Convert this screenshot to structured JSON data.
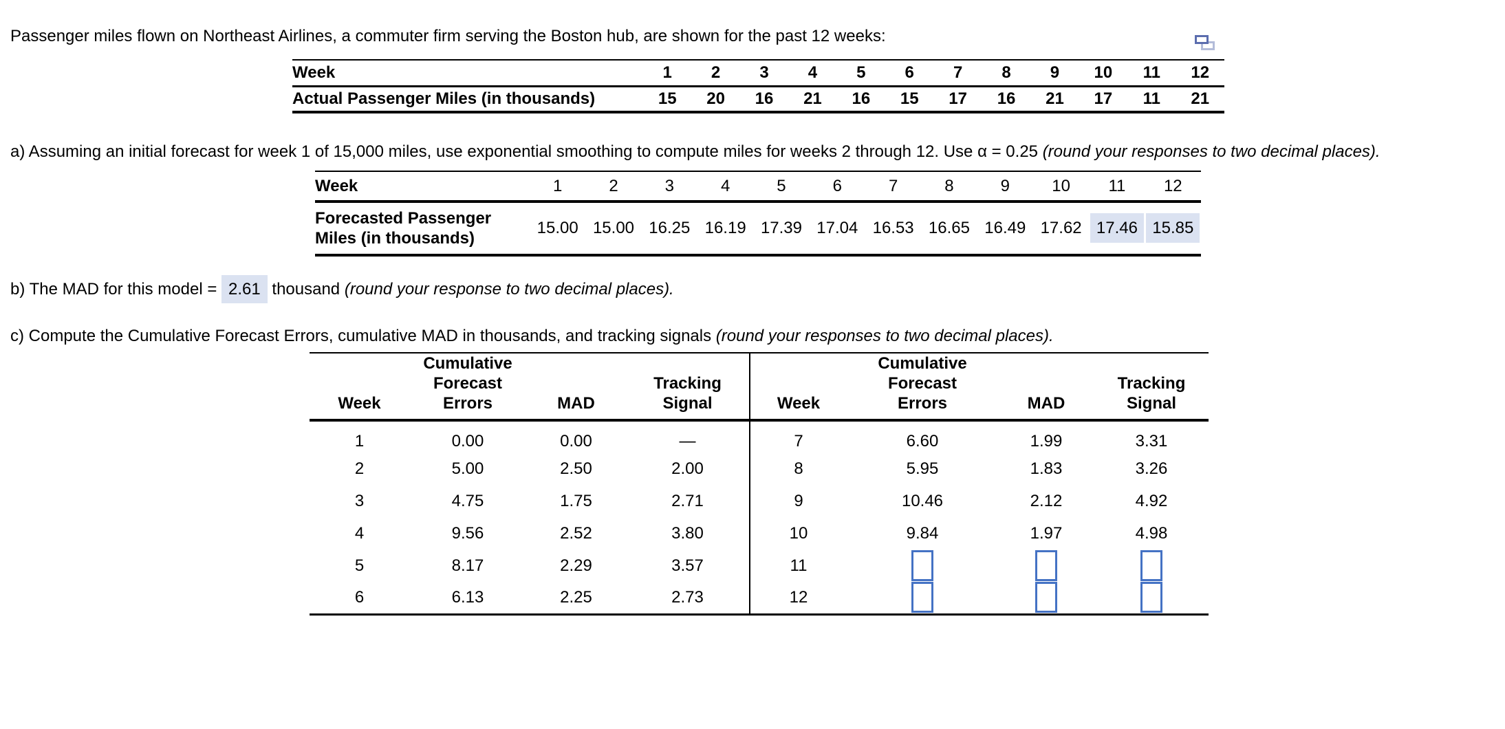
{
  "colors": {
    "text": "#000000",
    "answer_highlight_bg": "#dbe2f1",
    "input_box_border": "#4472c4",
    "icon_front_border": "#5b6dae",
    "icon_back_border": "#b3bcd9"
  },
  "icon": {
    "name": "duplicate-pages-icon"
  },
  "intro": {
    "text": "Passenger miles flown on Northeast Airlines, a commuter firm serving the Boston hub, are shown for the past 12 weeks:"
  },
  "table1": {
    "row1_label": "Week",
    "row2_label": "Actual Passenger Miles (in thousands)",
    "weeks": [
      "1",
      "2",
      "3",
      "4",
      "5",
      "6",
      "7",
      "8",
      "9",
      "10",
      "11",
      "12"
    ],
    "actual_miles": [
      "15",
      "20",
      "16",
      "21",
      "16",
      "15",
      "17",
      "16",
      "21",
      "17",
      "11",
      "21"
    ]
  },
  "part_a": {
    "text": "a) Assuming an initial forecast for week 1 of 15,000 miles, use exponential smoothing to compute miles for weeks 2 through 12. Use α = 0.25 ",
    "note_italic": "(round your responses to two decimal places)."
  },
  "table2": {
    "week_label": "Week",
    "row_label": "Forecasted Passenger Miles (in thousands)",
    "weeks": [
      "1",
      "2",
      "3",
      "4",
      "5",
      "6",
      "7",
      "8",
      "9",
      "10",
      "11",
      "12"
    ],
    "forecast_miles": [
      "15.00",
      "15.00",
      "16.25",
      "16.19",
      "17.39",
      "17.04",
      "16.53",
      "16.65",
      "16.49",
      "17.62",
      "17.46",
      "15.85"
    ],
    "highlighted_indices": [
      10,
      11
    ]
  },
  "part_b": {
    "prefix": "b) The MAD for this model = ",
    "value": "2.61",
    "middle": " thousand ",
    "note_italic": "(round your response to two decimal places)."
  },
  "part_c": {
    "text": "c) Compute the Cumulative Forecast Errors, cumulative MAD in thousands, and tracking signals ",
    "note_italic": "(round your responses to two decimal places)."
  },
  "table3": {
    "headers": {
      "week": "Week",
      "cfe": "Cumulative Forecast Errors",
      "mad": "MAD",
      "ts": "Tracking Signal"
    },
    "left_rows": [
      {
        "week": "1",
        "cfe": "0.00",
        "mad": "0.00",
        "ts": "—"
      },
      {
        "week": "2",
        "cfe": "5.00",
        "mad": "2.50",
        "ts": "2.00"
      },
      {
        "week": "3",
        "cfe": "4.75",
        "mad": "1.75",
        "ts": "2.71"
      },
      {
        "week": "4",
        "cfe": "9.56",
        "mad": "2.52",
        "ts": "3.80"
      },
      {
        "week": "5",
        "cfe": "8.17",
        "mad": "2.29",
        "ts": "3.57"
      },
      {
        "week": "6",
        "cfe": "6.13",
        "mad": "2.25",
        "ts": "2.73"
      }
    ],
    "right_rows": [
      {
        "week": "7",
        "cfe": "6.60",
        "mad": "1.99",
        "ts": "3.31"
      },
      {
        "week": "8",
        "cfe": "5.95",
        "mad": "1.83",
        "ts": "3.26"
      },
      {
        "week": "9",
        "cfe": "10.46",
        "mad": "2.12",
        "ts": "4.92"
      },
      {
        "week": "10",
        "cfe": "9.84",
        "mad": "1.97",
        "ts": "4.98"
      },
      {
        "week": "11",
        "cfe": null,
        "mad": null,
        "ts": null
      },
      {
        "week": "12",
        "cfe": null,
        "mad": null,
        "ts": null
      }
    ]
  }
}
